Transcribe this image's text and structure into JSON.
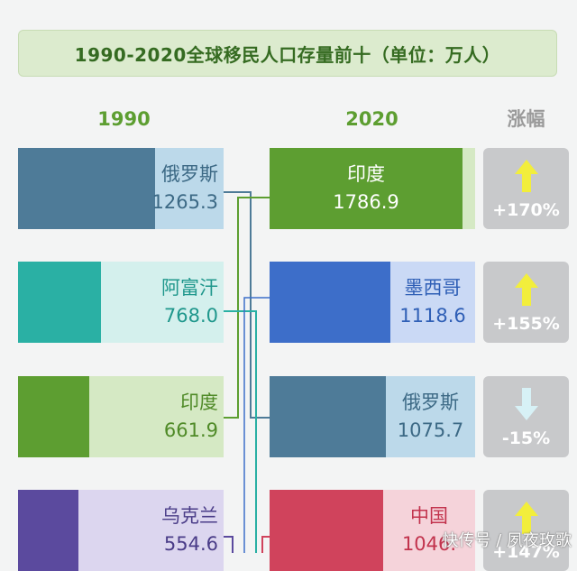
{
  "title": "1990-2020全球移民人口存量前十（单位：万人）",
  "headers": {
    "left": "1990",
    "right": "2020",
    "change": "涨幅"
  },
  "colors": {
    "russia": "#4e7b98",
    "russia_light": "#bcd9ea",
    "afghanistan": "#2ab0a4",
    "afghanistan_light": "#d4f0ed",
    "india": "#5d9e31",
    "india_light": "#d5e9c4",
    "ukraine": "#5b4a9e",
    "ukraine_light": "#dcd6ef",
    "mexico": "#3d6ec9",
    "mexico_light": "#cad9f5",
    "china": "#d0435c",
    "china_light": "#f5d3da"
  },
  "chart_data": {
    "type": "bar",
    "title": "1990-2020全球移民人口存量前十（单位：万人）",
    "xlim": [
      0,
      1900
    ],
    "columns": [
      {
        "name": "1990",
        "categories": [
          "俄罗斯",
          "阿富汗",
          "印度",
          "乌克兰"
        ],
        "values": [
          1265.3,
          768.0,
          661.9,
          554.6
        ],
        "value_labels": [
          "1265.3",
          "768.0",
          "661.9",
          "554.6"
        ]
      },
      {
        "name": "2020",
        "categories": [
          "印度",
          "墨西哥",
          "俄罗斯",
          "中国"
        ],
        "values": [
          1786.9,
          1118.6,
          1075.7,
          1046.0
        ],
        "value_labels": [
          "1786.9",
          "1118.6",
          "1075.7",
          "1046."
        ]
      }
    ],
    "changes": [
      {
        "label": "+170%",
        "direction": "up"
      },
      {
        "label": "+155%",
        "direction": "up"
      },
      {
        "label": "-15%",
        "direction": "down"
      },
      {
        "label": "+147%",
        "direction": "up"
      }
    ]
  },
  "watermark": "快传号 / 夙夜玫歌"
}
